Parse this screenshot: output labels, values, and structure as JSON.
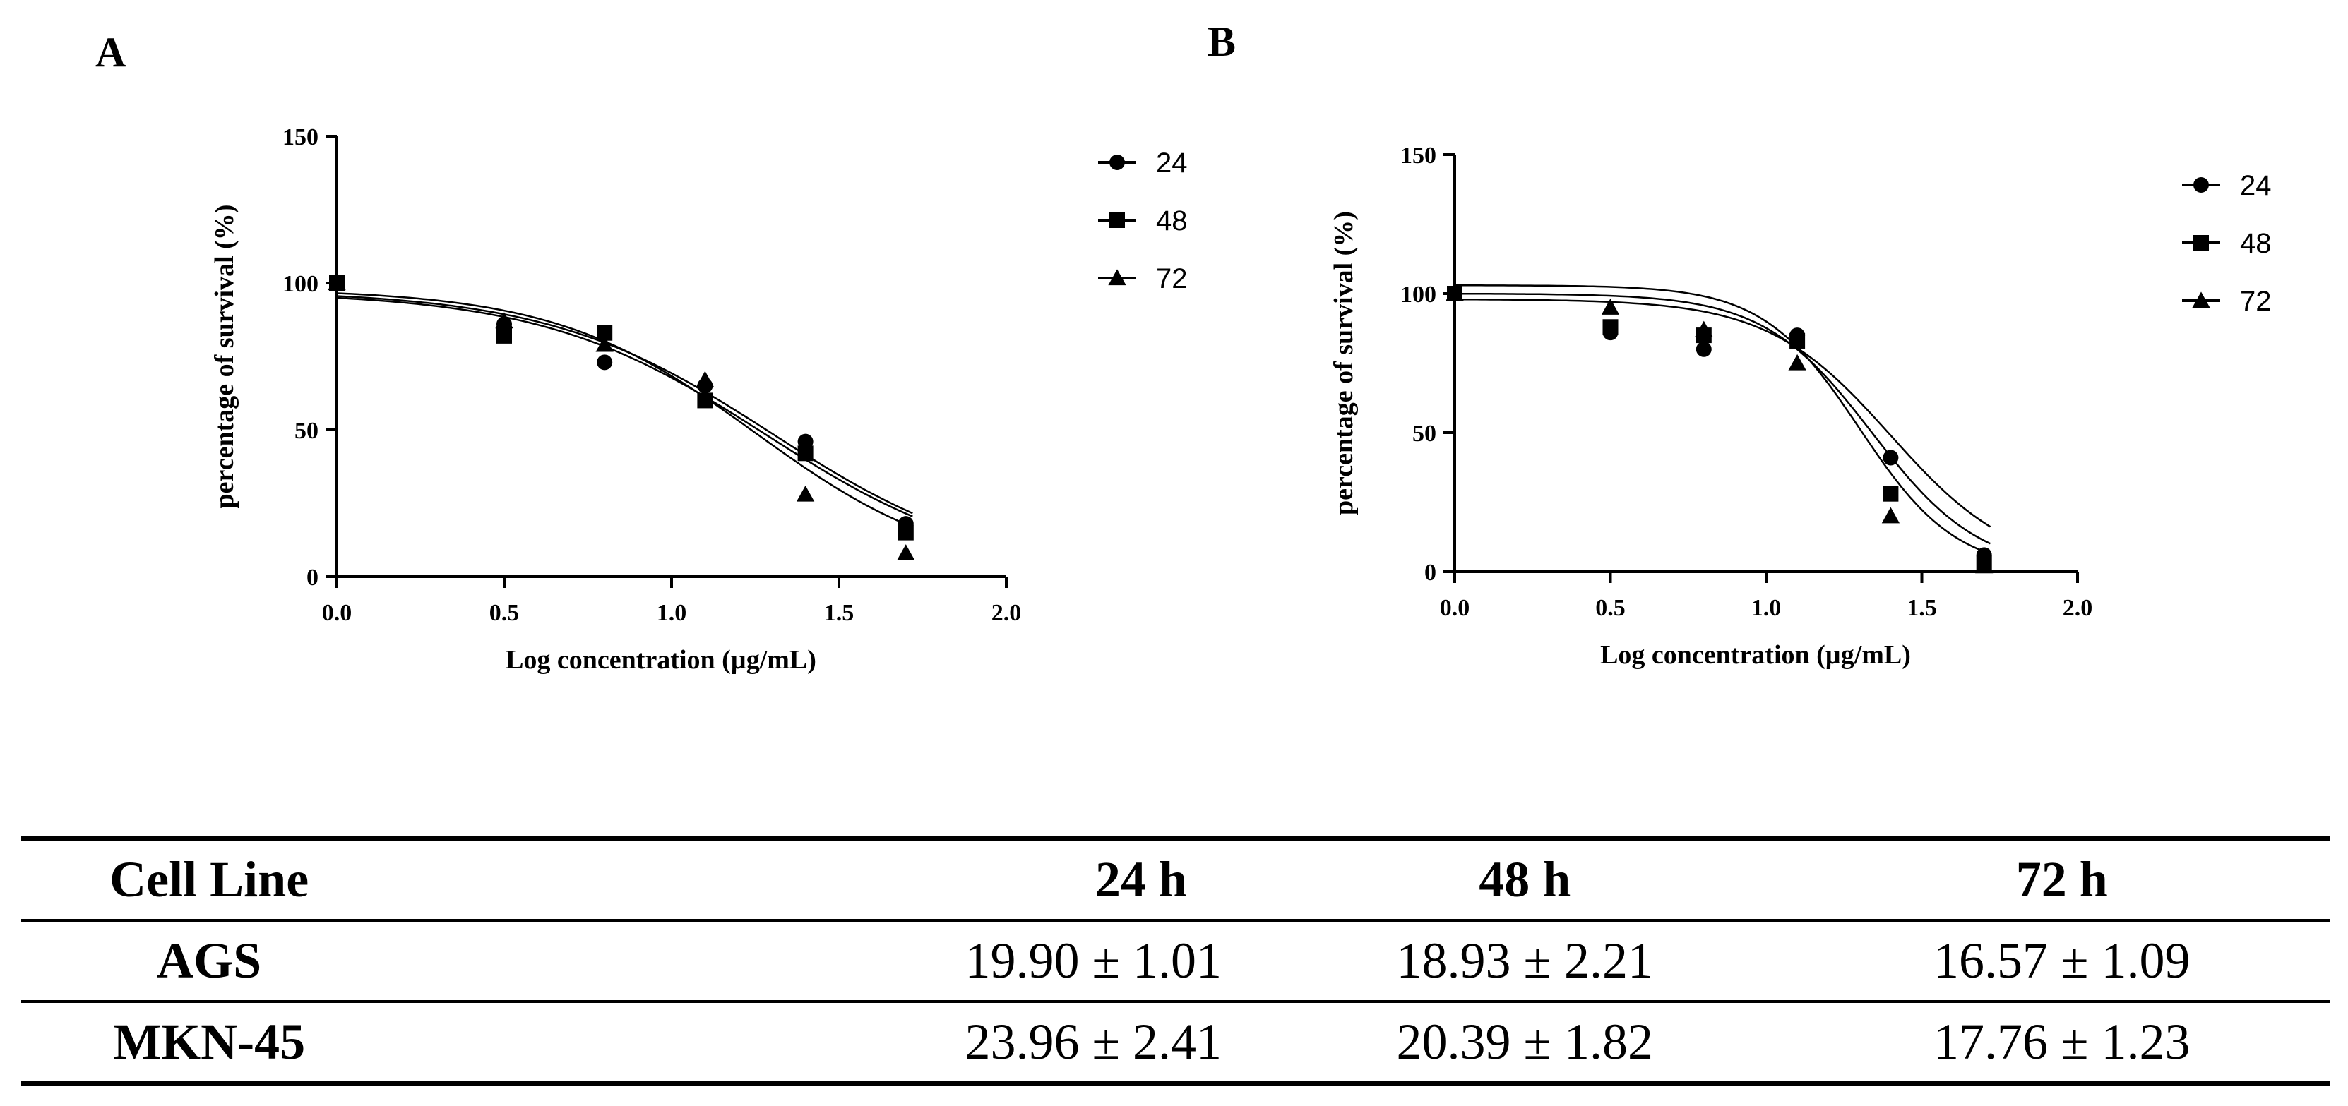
{
  "charts": {
    "A": {
      "panel_label": "A",
      "x_ticks": [
        "0.0",
        "0.5",
        "1.0",
        "1.5",
        "2.0"
      ],
      "y_ticks": [
        "0",
        "50",
        "100",
        "150"
      ],
      "legend_labels": [
        "24",
        "48",
        "72"
      ]
    },
    "B": {
      "panel_label": "B",
      "x_ticks": [
        "0.0",
        "0.5",
        "1.0",
        "1.5",
        "2.0"
      ],
      "y_ticks": [
        "0",
        "50",
        "100",
        "150"
      ],
      "legend_labels": [
        "24",
        "48",
        "72"
      ]
    }
  },
  "chart_data": [
    {
      "type": "scatter",
      "panel": "A",
      "title": "",
      "xlabel": "Log concentration (µg/mL)",
      "ylabel": "percentage of survival (%)",
      "xlim": [
        0,
        2
      ],
      "ylim": [
        0,
        150
      ],
      "x": [
        0,
        0.5,
        0.8,
        1.1,
        1.4,
        1.7
      ],
      "series": [
        {
          "name": "24",
          "marker": "circle",
          "values": [
            100,
            86,
            73,
            65,
            46,
            18
          ],
          "fit": {
            "top": 97.5,
            "ic50": 1.3,
            "hill": -1.3
          }
        },
        {
          "name": "48",
          "marker": "square",
          "values": [
            100,
            82,
            83,
            60,
            42,
            15
          ],
          "fit": {
            "top": 97.0,
            "ic50": 1.28,
            "hill": -1.3
          }
        },
        {
          "name": "72",
          "marker": "triangle",
          "values": [
            100,
            87,
            79,
            67,
            28,
            8
          ],
          "fit": {
            "top": 98.0,
            "ic50": 1.25,
            "hill": -1.45
          }
        }
      ],
      "legend_position": "right"
    },
    {
      "type": "scatter",
      "panel": "B",
      "title": "",
      "xlabel": "Log concentration (µg/mL)",
      "ylabel": "percentage of survival (%)",
      "xlim": [
        0,
        2
      ],
      "ylim": [
        0,
        150
      ],
      "x": [
        0,
        0.5,
        0.8,
        1.1,
        1.4,
        1.7
      ],
      "series": [
        {
          "name": "24",
          "marker": "circle",
          "values": [
            100,
            86,
            80,
            85,
            41,
            6
          ],
          "fit": {
            "top": 98.0,
            "ic50": 1.4,
            "hill": -2.2
          }
        },
        {
          "name": "48",
          "marker": "square",
          "values": [
            100,
            88,
            85,
            83,
            28,
            3
          ],
          "fit": {
            "top": 100.0,
            "ic50": 1.34,
            "hill": -2.5
          }
        },
        {
          "name": "72",
          "marker": "triangle",
          "values": [
            100,
            95,
            87,
            75,
            20,
            2
          ],
          "fit": {
            "top": 103.0,
            "ic50": 1.3,
            "hill": -2.8
          }
        }
      ],
      "legend_position": "right"
    },
    {
      "type": "table",
      "columns": [
        "Cell Line",
        "24 h",
        "48 h",
        "72 h"
      ],
      "rows": [
        [
          "AGS",
          "19.90 ± 1.01",
          "18.93 ± 2.21",
          "16.57 ± 1.09"
        ],
        [
          "MKN-45",
          "23.96 ± 2.41",
          "20.39 ± 1.82",
          "17.76 ± 1.23"
        ]
      ]
    }
  ]
}
